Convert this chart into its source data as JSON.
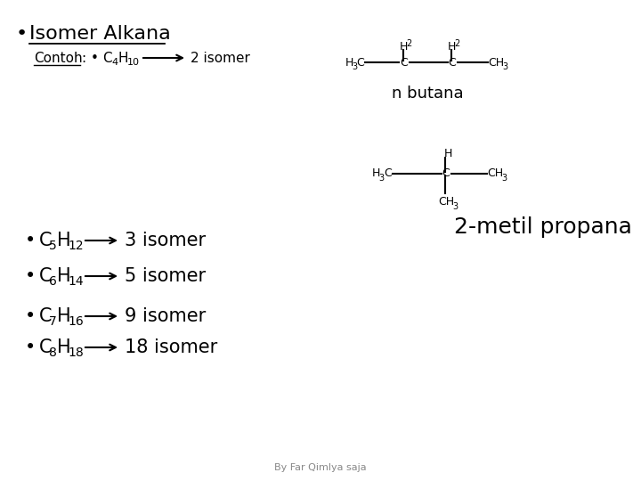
{
  "background_color": "#ffffff",
  "footer": "By Far Qimlya saja",
  "title": "Isomer Alkana",
  "contoh_label": "Contoh",
  "n_butana_label": "n butana",
  "label_2metil": "2-metil propana",
  "bullet_items": [
    {
      "c": "5",
      "h": "12",
      "isomer": "3 isomer"
    },
    {
      "c": "6",
      "h": "14",
      "isomer": "5 isomer"
    },
    {
      "c": "7",
      "h": "16",
      "isomer": "9 isomer"
    },
    {
      "c": "8",
      "h": "18",
      "isomer": "18 isomer"
    }
  ],
  "font_family": "DejaVu Sans"
}
